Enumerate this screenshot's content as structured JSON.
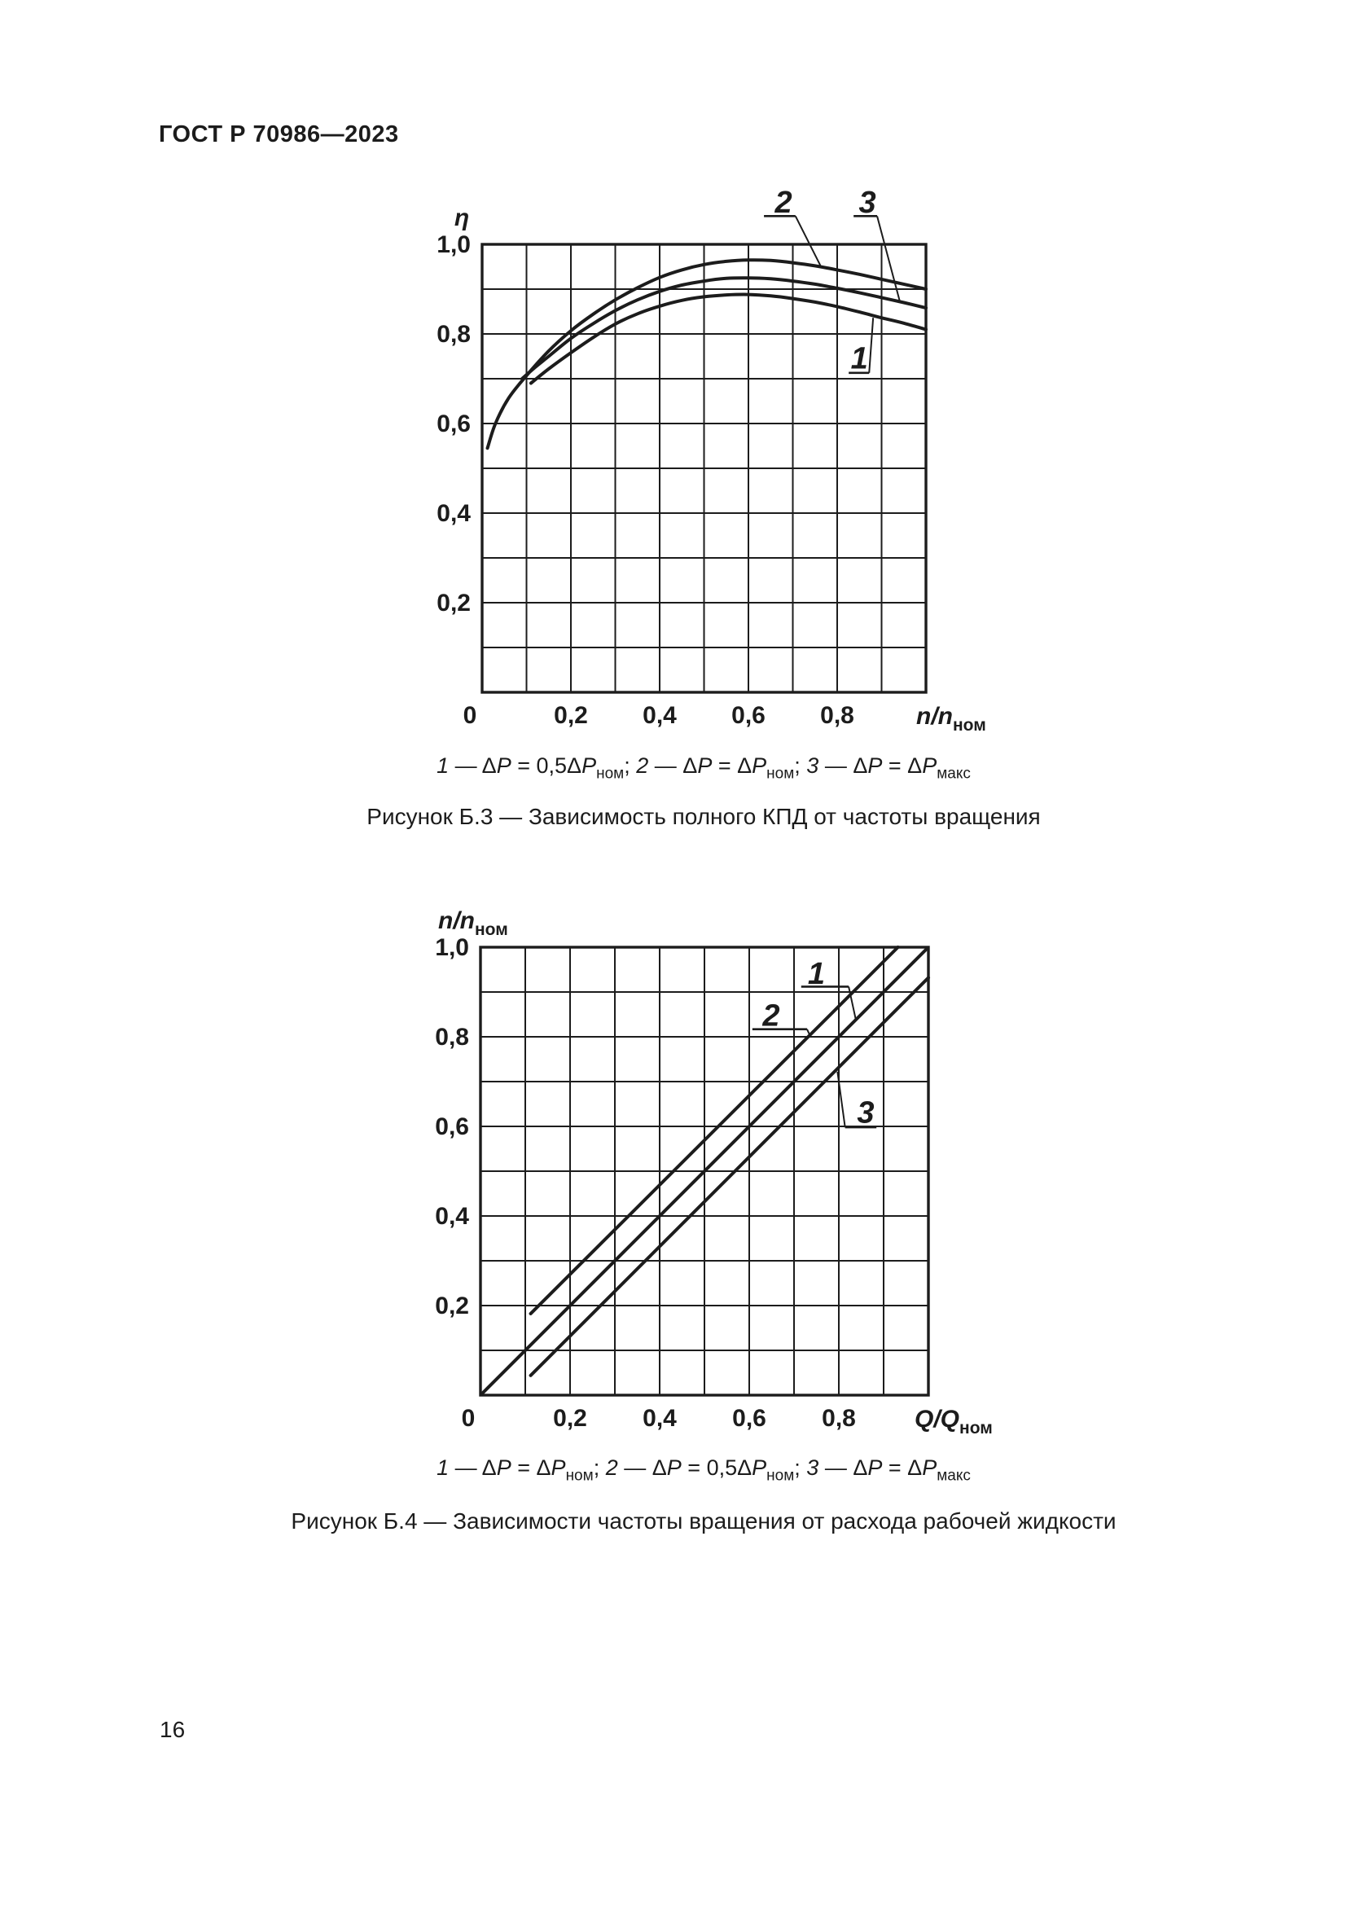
{
  "page": {
    "header": "ГОСТ Р 70986—2023",
    "page_number": "16",
    "background": "#ffffff",
    "ink": "#1c1c1c"
  },
  "figures": [
    {
      "id": "b3",
      "caption": "Рисунок Б.3 — Зависимость полного КПД от частоты вращения",
      "legend": {
        "dash": " — ",
        "separator": "; ",
        "items": [
          {
            "num": "1",
            "coeff": "0,5",
            "sub": "ном"
          },
          {
            "num": "2",
            "coeff": "",
            "sub": "ном"
          },
          {
            "num": "3",
            "coeff": "",
            "sub": "макс"
          }
        ]
      }
    },
    {
      "id": "b4",
      "caption": "Рисунок Б.4 — Зависимости частоты вращения от расхода рабочей жидкости",
      "legend": {
        "dash": " — ",
        "separator": "; ",
        "items": [
          {
            "num": "1",
            "coeff": "",
            "sub": "ном"
          },
          {
            "num": "2",
            "coeff": "0,5",
            "sub": "ном"
          },
          {
            "num": "3",
            "coeff": "",
            "sub": "макс"
          }
        ]
      }
    }
  ],
  "chart_data": [
    {
      "id": "b3",
      "type": "line",
      "title": "Зависимость полного КПД от частоты вращения",
      "xlabel": {
        "main": "n/n",
        "sub": "ном"
      },
      "ylabel": {
        "main": "η",
        "sub": ""
      },
      "xlim": [
        0,
        1.0
      ],
      "ylim": [
        0,
        1.0
      ],
      "grid": true,
      "grid_step": 0.1,
      "x_ticks": [
        {
          "v": 0,
          "label": "0",
          "dx": -15
        },
        {
          "v": 0.2,
          "label": "0,2"
        },
        {
          "v": 0.4,
          "label": "0,4"
        },
        {
          "v": 0.6,
          "label": "0,6"
        },
        {
          "v": 0.8,
          "label": "0,8"
        }
      ],
      "y_ticks": [
        {
          "v": 1.0,
          "label": "1,0"
        },
        {
          "v": 0.8,
          "label": "0,8"
        },
        {
          "v": 0.6,
          "label": "0,6"
        },
        {
          "v": 0.4,
          "label": "0,4"
        },
        {
          "v": 0.2,
          "label": "0,2"
        }
      ],
      "series": [
        {
          "name": "1",
          "condition": "ΔP = 0,5ΔPном",
          "smooth": true,
          "points": [
            [
              0.11,
              0.69
            ],
            [
              0.15,
              0.722
            ],
            [
              0.2,
              0.758
            ],
            [
              0.25,
              0.792
            ],
            [
              0.3,
              0.822
            ],
            [
              0.35,
              0.845
            ],
            [
              0.4,
              0.862
            ],
            [
              0.45,
              0.875
            ],
            [
              0.5,
              0.883
            ],
            [
              0.55,
              0.887
            ],
            [
              0.6,
              0.888
            ],
            [
              0.65,
              0.885
            ],
            [
              0.7,
              0.879
            ],
            [
              0.75,
              0.871
            ],
            [
              0.8,
              0.861
            ],
            [
              0.85,
              0.849
            ],
            [
              0.9,
              0.836
            ],
            [
              0.95,
              0.824
            ],
            [
              1.0,
              0.81
            ]
          ]
        },
        {
          "name": "2",
          "condition": "ΔP = ΔPном",
          "smooth": true,
          "points": [
            [
              0.012,
              0.545
            ],
            [
              0.03,
              0.6
            ],
            [
              0.06,
              0.657
            ],
            [
              0.1,
              0.707
            ],
            [
              0.15,
              0.762
            ],
            [
              0.2,
              0.807
            ],
            [
              0.25,
              0.844
            ],
            [
              0.3,
              0.876
            ],
            [
              0.35,
              0.903
            ],
            [
              0.4,
              0.926
            ],
            [
              0.45,
              0.943
            ],
            [
              0.5,
              0.955
            ],
            [
              0.55,
              0.962
            ],
            [
              0.6,
              0.965
            ],
            [
              0.65,
              0.964
            ],
            [
              0.7,
              0.959
            ],
            [
              0.75,
              0.952
            ],
            [
              0.8,
              0.943
            ],
            [
              0.85,
              0.933
            ],
            [
              0.9,
              0.922
            ],
            [
              0.95,
              0.911
            ],
            [
              1.0,
              0.9
            ]
          ]
        },
        {
          "name": "3",
          "condition": "ΔP = ΔPмакс",
          "smooth": true,
          "points": [
            [
              0.09,
              0.7
            ],
            [
              0.12,
              0.726
            ],
            [
              0.15,
              0.75
            ],
            [
              0.2,
              0.79
            ],
            [
              0.25,
              0.823
            ],
            [
              0.3,
              0.852
            ],
            [
              0.35,
              0.876
            ],
            [
              0.4,
              0.895
            ],
            [
              0.45,
              0.909
            ],
            [
              0.5,
              0.918
            ],
            [
              0.55,
              0.924
            ],
            [
              0.6,
              0.925
            ],
            [
              0.65,
              0.923
            ],
            [
              0.7,
              0.918
            ],
            [
              0.75,
              0.911
            ],
            [
              0.8,
              0.902
            ],
            [
              0.85,
              0.892
            ],
            [
              0.9,
              0.881
            ],
            [
              0.95,
              0.87
            ],
            [
              1.0,
              0.858
            ]
          ]
        }
      ],
      "annotations": [
        {
          "text": "2",
          "tx": 0.679,
          "ty": 1.093,
          "underline": [
            [
              0.635,
              1.063
            ],
            [
              0.706,
              1.063
            ]
          ],
          "leader": [
            [
              0.706,
              1.063
            ],
            [
              0.763,
              0.951
            ]
          ]
        },
        {
          "text": "3",
          "tx": 0.868,
          "ty": 1.093,
          "underline": [
            [
              0.837,
              1.063
            ],
            [
              0.89,
              1.063
            ]
          ],
          "leader": [
            [
              0.89,
              1.063
            ],
            [
              0.941,
              0.873
            ]
          ]
        },
        {
          "text": "1",
          "tx": 0.85,
          "ty": 0.745,
          "underline": [
            [
              0.826,
              0.713
            ],
            [
              0.872,
              0.713
            ]
          ],
          "leader": [
            [
              0.872,
              0.713
            ],
            [
              0.881,
              0.836
            ]
          ]
        }
      ]
    },
    {
      "id": "b4",
      "type": "line",
      "title": "Зависимости частоты вращения от расхода рабочей жидкости",
      "xlabel": {
        "main": "Q/Q",
        "sub": "ном"
      },
      "ylabel": {
        "main": "n/n",
        "sub": "ном"
      },
      "xlim": [
        0,
        1.0
      ],
      "ylim": [
        0,
        1.0
      ],
      "grid": true,
      "grid_step": 0.1,
      "x_ticks": [
        {
          "v": 0,
          "label": "0",
          "dx": -15
        },
        {
          "v": 0.2,
          "label": "0,2"
        },
        {
          "v": 0.4,
          "label": "0,4"
        },
        {
          "v": 0.6,
          "label": "0,6"
        },
        {
          "v": 0.8,
          "label": "0,8"
        }
      ],
      "y_ticks": [
        {
          "v": 1.0,
          "label": "1,0"
        },
        {
          "v": 0.8,
          "label": "0,8"
        },
        {
          "v": 0.6,
          "label": "0,6"
        },
        {
          "v": 0.4,
          "label": "0,4"
        },
        {
          "v": 0.2,
          "label": "0,2"
        }
      ],
      "series": [
        {
          "name": "1",
          "condition": "ΔP = ΔPном",
          "smooth": false,
          "points": [
            [
              0.002,
              0.002
            ],
            [
              0.998,
              0.998
            ]
          ]
        },
        {
          "name": "2",
          "condition": "ΔP = 0,5ΔPном",
          "smooth": false,
          "points": [
            [
              0.112,
              0.182
            ],
            [
              0.932,
              1.0
            ]
          ]
        },
        {
          "name": "3",
          "condition": "ΔP = ΔPмакс",
          "smooth": false,
          "points": [
            [
              0.112,
              0.044
            ],
            [
              1.0,
              0.932
            ]
          ]
        }
      ],
      "annotations": [
        {
          "text": "1",
          "tx": 0.75,
          "ty": 0.94,
          "underline": [
            [
              0.716,
              0.912
            ],
            [
              0.822,
              0.912
            ]
          ],
          "leader": [
            [
              0.822,
              0.912
            ],
            [
              0.838,
              0.838
            ]
          ]
        },
        {
          "text": "2",
          "tx": 0.649,
          "ty": 0.846,
          "underline": [
            [
              0.607,
              0.817
            ],
            [
              0.729,
              0.817
            ]
          ],
          "leader": [
            [
              0.729,
              0.817
            ],
            [
              0.737,
              0.8
            ]
          ]
        },
        {
          "text": "3",
          "tx": 0.86,
          "ty": 0.63,
          "underline": [
            [
              0.814,
              0.598
            ],
            [
              0.884,
              0.598
            ]
          ],
          "leader": [
            [
              0.814,
              0.598
            ],
            [
              0.797,
              0.722
            ]
          ]
        }
      ]
    }
  ]
}
